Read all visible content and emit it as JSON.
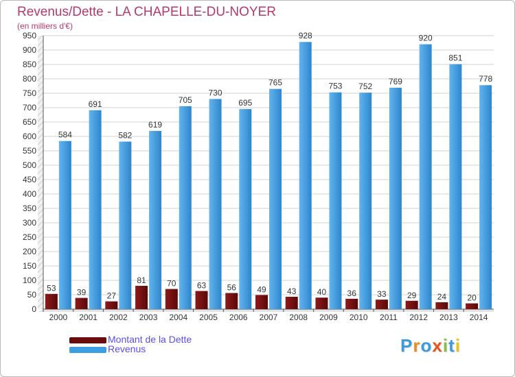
{
  "chart_data": {
    "type": "bar",
    "title": "Revenus/Dette - LA CHAPELLE-DU-NOYER",
    "subtitle": "(en milliers d'€)",
    "categories": [
      "2000",
      "2001",
      "2002",
      "2003",
      "2004",
      "2005",
      "2006",
      "2007",
      "2008",
      "2009",
      "2010",
      "2011",
      "2012",
      "2013",
      "2014"
    ],
    "series": [
      {
        "name": "Montant de la Dette",
        "color": "#7a1010",
        "values": [
          53,
          39,
          27,
          81,
          70,
          63,
          56,
          49,
          43,
          40,
          36,
          33,
          29,
          24,
          20
        ]
      },
      {
        "name": "Revenus",
        "color": "#3f9ee2",
        "values": [
          584,
          691,
          582,
          619,
          705,
          730,
          695,
          765,
          928,
          753,
          752,
          769,
          920,
          851,
          778
        ]
      }
    ],
    "ylim": [
      0,
      950
    ],
    "yticks": [
      0,
      50,
      100,
      150,
      200,
      250,
      300,
      350,
      400,
      450,
      500,
      550,
      600,
      650,
      700,
      750,
      800,
      850,
      900,
      950
    ],
    "grid": true,
    "legend_position": "bottom-left"
  },
  "logo": {
    "letters": [
      "P",
      "r",
      "o",
      "x",
      "i",
      "t",
      "i"
    ],
    "colors": [
      "#3b9be0",
      "#f08a1c",
      "#3b9be0",
      "#e8531c",
      "#86c13c",
      "#3b9be0",
      "#e8c41c"
    ]
  }
}
